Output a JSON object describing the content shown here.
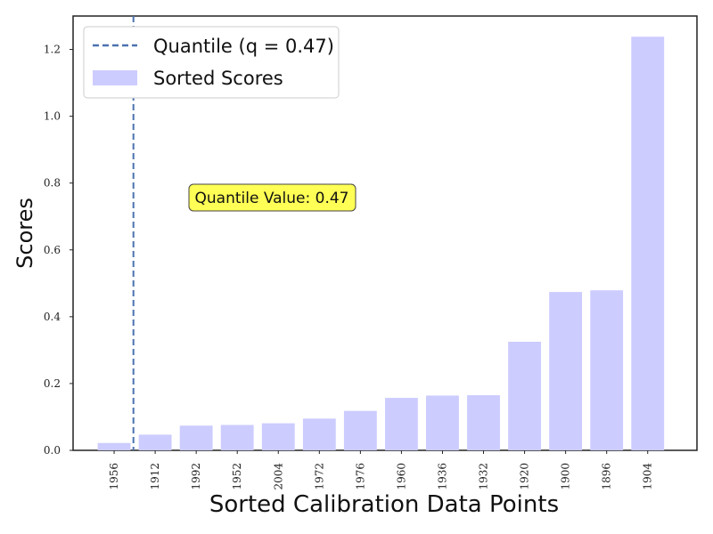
{
  "chart_data": {
    "type": "bar",
    "categories": [
      "1956",
      "1912",
      "1992",
      "1952",
      "2004",
      "1972",
      "1976",
      "1960",
      "1936",
      "1932",
      "1920",
      "1900",
      "1896",
      "1904"
    ],
    "values": [
      0.022,
      0.047,
      0.074,
      0.076,
      0.081,
      0.095,
      0.118,
      0.157,
      0.164,
      0.165,
      0.325,
      0.474,
      0.479,
      1.238
    ],
    "title": "",
    "xlabel": "Sorted Calibration Data Points",
    "ylabel": "Scores",
    "ylim": [
      0,
      1.3
    ],
    "yticks": [
      "0.0",
      "0.2",
      "0.4",
      "0.6",
      "0.8",
      "1.0",
      "1.2"
    ],
    "grid": false,
    "legend_position": "top-left",
    "quantile_line": {
      "label": "Quantile (q = 0.47)",
      "x_position": 0.47,
      "style": "dashed"
    },
    "annotation": {
      "text": "Quantile Value: 0.47",
      "y": 0.76
    },
    "series": [
      {
        "name": "Sorted Scores",
        "values": [
          0.022,
          0.047,
          0.074,
          0.076,
          0.081,
          0.095,
          0.118,
          0.157,
          0.164,
          0.165,
          0.325,
          0.474,
          0.479,
          1.238
        ]
      }
    ],
    "colors": {
      "bar": "#ccccff",
      "quantile_line": "#4c72b0",
      "annotation_bg": "#ffff55",
      "axes": "#222222"
    }
  }
}
